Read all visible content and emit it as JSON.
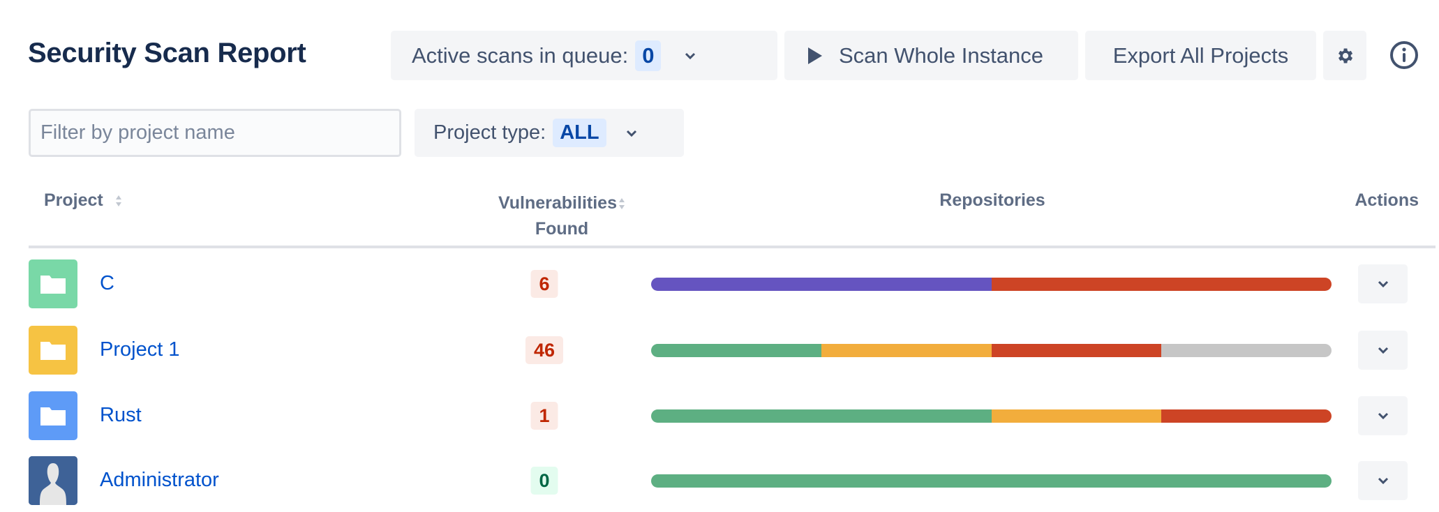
{
  "header": {
    "title": "Security Scan Report",
    "queue_label": "Active scans in queue:",
    "queue_count": "0",
    "scan_label": "Scan Whole Instance",
    "export_label": "Export All Projects"
  },
  "filters": {
    "search_placeholder": "Filter by project name",
    "search_value": "",
    "type_label": "Project type:",
    "type_value": "ALL"
  },
  "table": {
    "columns": {
      "project": "Project",
      "vuln_1": "Vulnerabilities",
      "vuln_2": "Found",
      "repos": "Repositories",
      "actions": "Actions"
    },
    "rows": [
      {
        "name": "C",
        "icon": "folder-icon",
        "icon_color": "#79d8a7",
        "count": "6",
        "status": "danger",
        "segments": [
          {
            "color": "#6554c0",
            "pct": 50
          },
          {
            "color": "#cd4425",
            "pct": 50
          }
        ]
      },
      {
        "name": "Project 1",
        "icon": "folder-icon",
        "icon_color": "#f6c343",
        "count": "46",
        "status": "danger",
        "segments": [
          {
            "color": "#5daf82",
            "pct": 25
          },
          {
            "color": "#f2ad3c",
            "pct": 25
          },
          {
            "color": "#cd4425",
            "pct": 25
          },
          {
            "color": "#c6c6c6",
            "pct": 25
          }
        ]
      },
      {
        "name": "Rust",
        "icon": "folder-icon",
        "icon_color": "#5e9bf7",
        "count": "1",
        "status": "danger",
        "segments": [
          {
            "color": "#5daf82",
            "pct": 50
          },
          {
            "color": "#f2ad3c",
            "pct": 25
          },
          {
            "color": "#cd4425",
            "pct": 25
          }
        ]
      },
      {
        "name": "Administrator",
        "icon": "user-avatar-icon",
        "icon_color": "#3e6297",
        "count": "0",
        "status": "success",
        "segments": [
          {
            "color": "#5daf82",
            "pct": 100
          }
        ]
      }
    ]
  },
  "colors": {
    "danger_bg": "#fbeae5",
    "danger_fg": "#bf2600",
    "success_bg": "#e3fcef",
    "success_fg": "#006644"
  }
}
